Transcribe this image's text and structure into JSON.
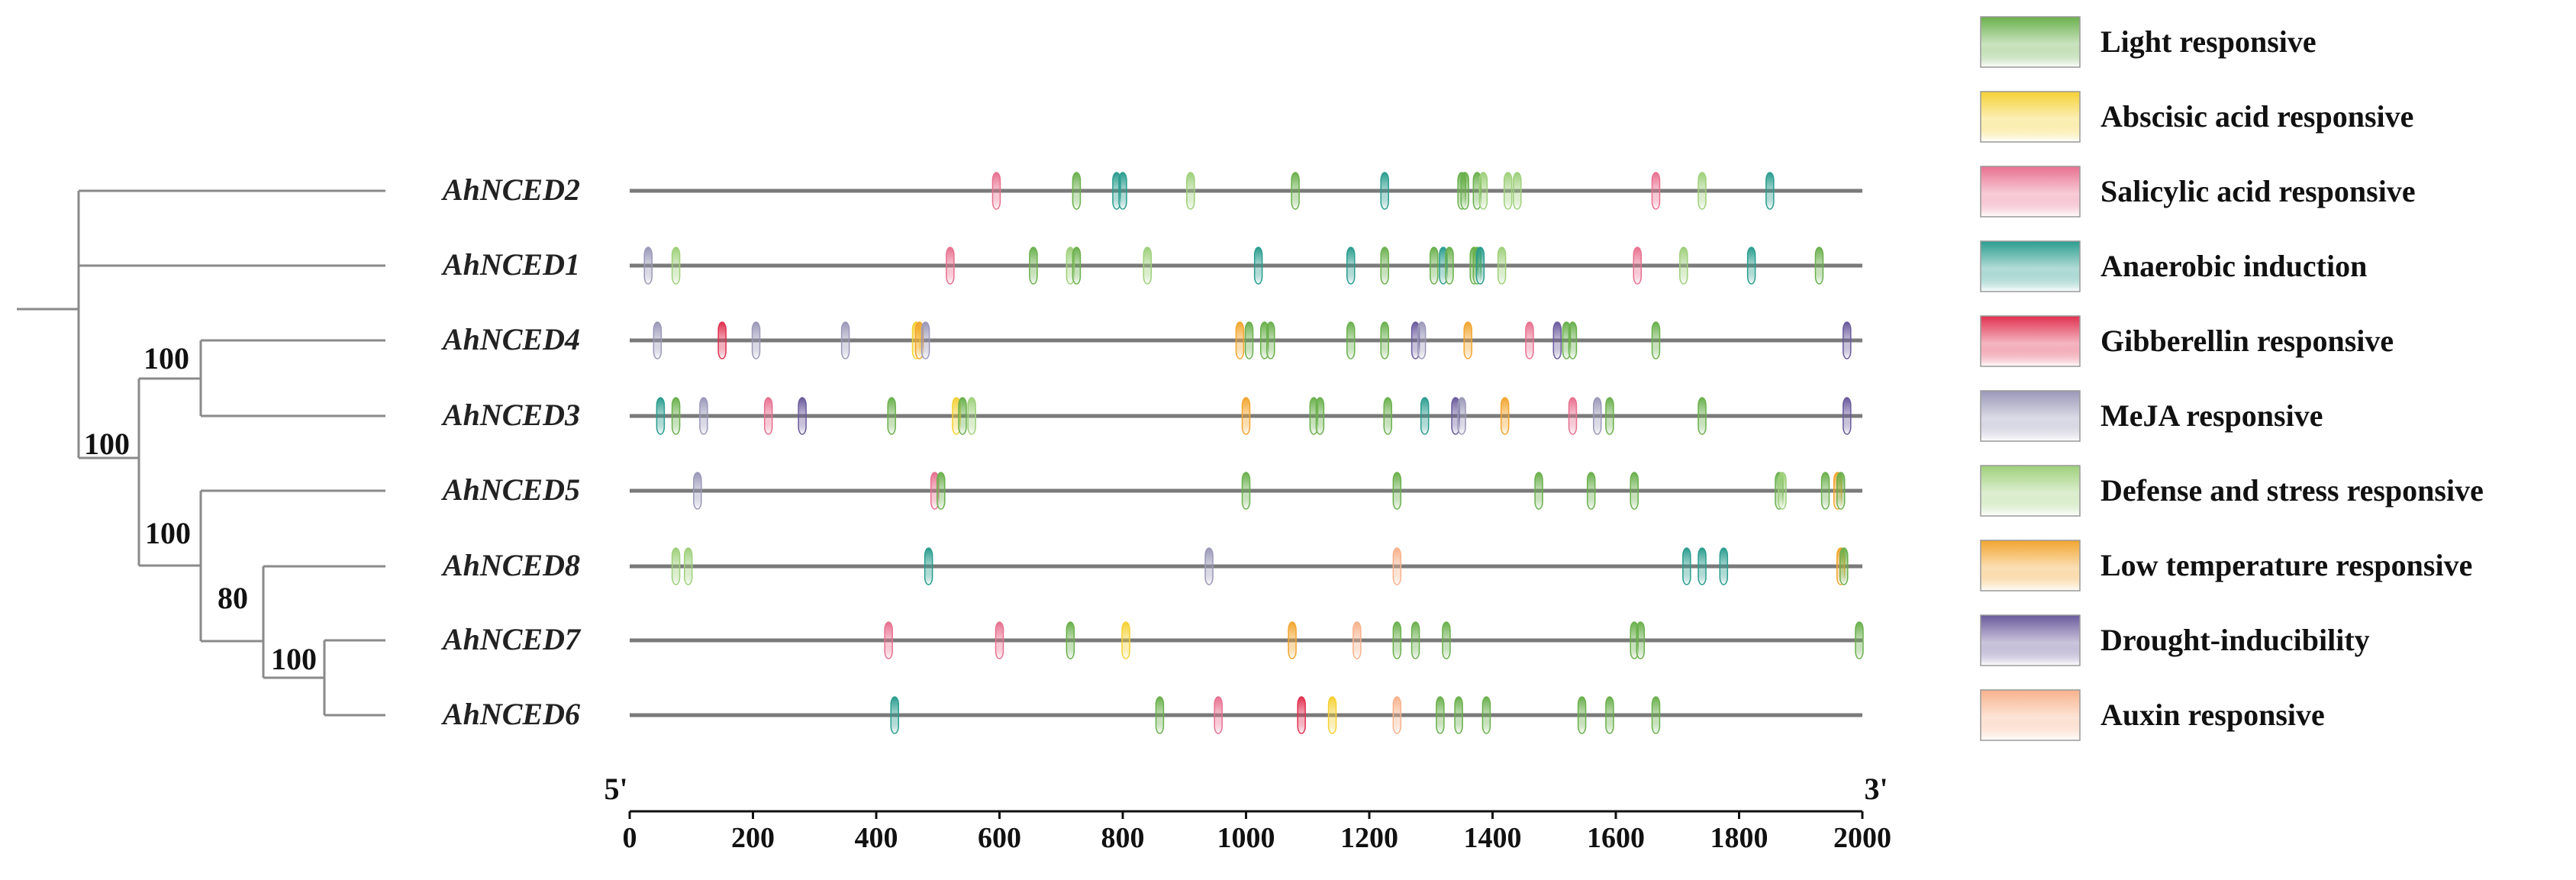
{
  "axis": {
    "five_prime_label": "5'",
    "three_prime_label": "3'",
    "min": 0,
    "max": 2000,
    "ticks": [
      0,
      200,
      400,
      600,
      800,
      1000,
      1200,
      1400,
      1600,
      1800,
      2000
    ]
  },
  "genes": [
    {
      "name": "AhNCED2",
      "elements": [
        [
          "salicylic",
          595
        ],
        [
          "light",
          725
        ],
        [
          "anaerobic",
          790
        ],
        [
          "anaerobic",
          800
        ],
        [
          "defense",
          910
        ],
        [
          "light",
          1080
        ],
        [
          "anaerobic",
          1225
        ],
        [
          "light",
          1350
        ],
        [
          "light",
          1355
        ],
        [
          "light",
          1375
        ],
        [
          "defense",
          1385
        ],
        [
          "defense",
          1425
        ],
        [
          "defense",
          1440
        ],
        [
          "salicylic",
          1665
        ],
        [
          "defense",
          1740
        ],
        [
          "anaerobic",
          1850
        ]
      ]
    },
    {
      "name": "AhNCED1",
      "elements": [
        [
          "meja",
          30
        ],
        [
          "defense",
          75
        ],
        [
          "salicylic",
          520
        ],
        [
          "light",
          655
        ],
        [
          "defense",
          715
        ],
        [
          "light",
          725
        ],
        [
          "defense",
          840
        ],
        [
          "anaerobic",
          1020
        ],
        [
          "anaerobic",
          1170
        ],
        [
          "light",
          1225
        ],
        [
          "light",
          1305
        ],
        [
          "anaerobic",
          1320
        ],
        [
          "light",
          1330
        ],
        [
          "light",
          1370
        ],
        [
          "light",
          1375
        ],
        [
          "anaerobic",
          1380
        ],
        [
          "defense",
          1415
        ],
        [
          "salicylic",
          1635
        ],
        [
          "defense",
          1710
        ],
        [
          "anaerobic",
          1820
        ],
        [
          "light",
          1930
        ]
      ]
    },
    {
      "name": "AhNCED4",
      "elements": [
        [
          "meja",
          45
        ],
        [
          "gibberellin",
          150
        ],
        [
          "meja",
          205
        ],
        [
          "meja",
          350
        ],
        [
          "abscisic",
          465
        ],
        [
          "lowtemp",
          470
        ],
        [
          "meja",
          480
        ],
        [
          "lowtemp",
          990
        ],
        [
          "light",
          1005
        ],
        [
          "light",
          1030
        ],
        [
          "light",
          1040
        ],
        [
          "light",
          1170
        ],
        [
          "light",
          1225
        ],
        [
          "drought",
          1275
        ],
        [
          "meja",
          1285
        ],
        [
          "lowtemp",
          1360
        ],
        [
          "salicylic",
          1460
        ],
        [
          "drought",
          1505
        ],
        [
          "light",
          1520
        ],
        [
          "light",
          1530
        ],
        [
          "light",
          1665
        ],
        [
          "drought",
          1975
        ]
      ]
    },
    {
      "name": "AhNCED3",
      "elements": [
        [
          "anaerobic",
          50
        ],
        [
          "light",
          75
        ],
        [
          "meja",
          120
        ],
        [
          "salicylic",
          225
        ],
        [
          "drought",
          280
        ],
        [
          "light",
          425
        ],
        [
          "abscisic",
          530
        ],
        [
          "light",
          540
        ],
        [
          "defense",
          555
        ],
        [
          "lowtemp",
          1000
        ],
        [
          "light",
          1110
        ],
        [
          "light",
          1120
        ],
        [
          "light",
          1230
        ],
        [
          "anaerobic",
          1290
        ],
        [
          "drought",
          1340
        ],
        [
          "meja",
          1350
        ],
        [
          "lowtemp",
          1420
        ],
        [
          "salicylic",
          1530
        ],
        [
          "meja",
          1570
        ],
        [
          "light",
          1590
        ],
        [
          "light",
          1740
        ],
        [
          "drought",
          1975
        ]
      ]
    },
    {
      "name": "AhNCED5",
      "elements": [
        [
          "meja",
          110
        ],
        [
          "salicylic",
          495
        ],
        [
          "light",
          505
        ],
        [
          "light",
          1000
        ],
        [
          "light",
          1245
        ],
        [
          "light",
          1475
        ],
        [
          "light",
          1560
        ],
        [
          "light",
          1630
        ],
        [
          "light",
          1865
        ],
        [
          "defense",
          1870
        ],
        [
          "light",
          1940
        ],
        [
          "lowtemp",
          1960
        ],
        [
          "light",
          1965
        ]
      ]
    },
    {
      "name": "AhNCED8",
      "elements": [
        [
          "defense",
          75
        ],
        [
          "defense",
          95
        ],
        [
          "anaerobic",
          485
        ],
        [
          "meja",
          940
        ],
        [
          "auxin",
          1245
        ],
        [
          "anaerobic",
          1715
        ],
        [
          "anaerobic",
          1740
        ],
        [
          "anaerobic",
          1775
        ],
        [
          "lowtemp",
          1965
        ],
        [
          "light",
          1970
        ]
      ]
    },
    {
      "name": "AhNCED7",
      "elements": [
        [
          "salicylic",
          420
        ],
        [
          "salicylic",
          600
        ],
        [
          "light",
          715
        ],
        [
          "abscisic",
          805
        ],
        [
          "lowtemp",
          1075
        ],
        [
          "auxin",
          1180
        ],
        [
          "light",
          1245
        ],
        [
          "light",
          1275
        ],
        [
          "light",
          1325
        ],
        [
          "light",
          1630
        ],
        [
          "light",
          1640
        ],
        [
          "light",
          1995
        ]
      ]
    },
    {
      "name": "AhNCED6",
      "elements": [
        [
          "anaerobic",
          430
        ],
        [
          "light",
          860
        ],
        [
          "salicylic",
          955
        ],
        [
          "gibberellin",
          1090
        ],
        [
          "abscisic",
          1140
        ],
        [
          "auxin",
          1245
        ],
        [
          "light",
          1315
        ],
        [
          "light",
          1345
        ],
        [
          "light",
          1390
        ],
        [
          "light",
          1545
        ],
        [
          "light",
          1590
        ],
        [
          "light",
          1665
        ]
      ]
    }
  ],
  "bootstrap": [
    "100",
    "100",
    "100",
    "80",
    "100"
  ],
  "legend": [
    {
      "key": "light",
      "label": "Light responsive",
      "color": "#6ab04c"
    },
    {
      "key": "abscisic",
      "label": "Abscisic acid responsive",
      "color": "#f5d133"
    },
    {
      "key": "salicylic",
      "label": "Salicylic acid responsive",
      "color": "#e8708f"
    },
    {
      "key": "anaerobic",
      "label": "Anaerobic induction",
      "color": "#2a9d8f"
    },
    {
      "key": "gibberellin",
      "label": "Gibberellin responsive",
      "color": "#e0304f"
    },
    {
      "key": "meja",
      "label": "MeJA responsive",
      "color": "#9a98b8"
    },
    {
      "key": "defense",
      "label": "Defense and stress responsive",
      "color": "#9ed07a"
    },
    {
      "key": "lowtemp",
      "label": "Low temperature responsive",
      "color": "#f2a52e"
    },
    {
      "key": "drought",
      "label": "Drought-inducibility",
      "color": "#6a5a9c"
    },
    {
      "key": "auxin",
      "label": "Auxin responsive",
      "color": "#f7b28c"
    }
  ]
}
